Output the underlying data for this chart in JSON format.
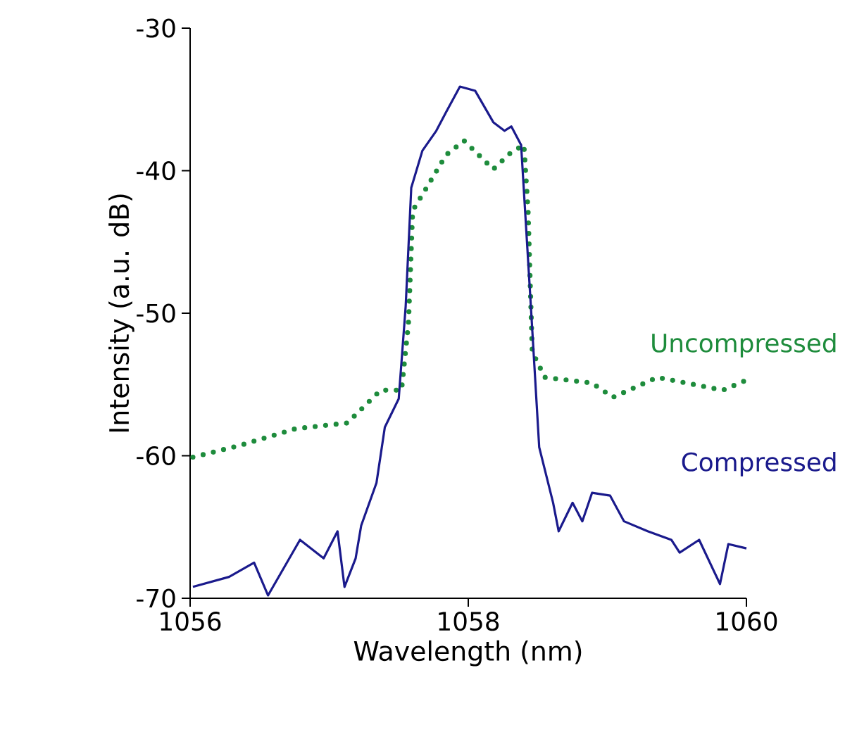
{
  "chart_data": {
    "type": "line",
    "xlabel": "Wavelength (nm)",
    "ylabel": "Intensity (a.u. dB)",
    "xlim": [
      1056,
      1060
    ],
    "ylim": [
      -70,
      -30
    ],
    "xticks": [
      1056,
      1058,
      1060
    ],
    "yticks": [
      -70,
      -60,
      -50,
      -40,
      -30
    ],
    "grid": false,
    "series": [
      {
        "name": "Uncompressed",
        "color": "#1e8c3c",
        "line_style": "dotted",
        "x": [
          1056.02,
          1056.35,
          1056.76,
          1057.13,
          1057.37,
          1057.52,
          1057.57,
          1057.6,
          1057.7,
          1057.84,
          1057.97,
          1058.18,
          1058.31,
          1058.4,
          1058.43,
          1058.46,
          1058.55,
          1058.89,
          1059.04,
          1059.36,
          1059.83,
          1060.0
        ],
        "values": [
          -60.1,
          -59.3,
          -58.1,
          -57.7,
          -55.4,
          -55.4,
          -50.7,
          -42.8,
          -41.2,
          -38.9,
          -37.9,
          -39.9,
          -38.7,
          -38.2,
          -42.8,
          -52.7,
          -54.5,
          -54.9,
          -55.9,
          -54.5,
          -55.4,
          -54.7
        ]
      },
      {
        "name": "Compressed",
        "color": "#1a1a8c",
        "line_style": "solid",
        "x": [
          1056.02,
          1056.28,
          1056.46,
          1056.56,
          1056.79,
          1056.96,
          1057.06,
          1057.11,
          1057.19,
          1057.23,
          1057.34,
          1057.4,
          1057.5,
          1057.55,
          1057.59,
          1057.67,
          1057.77,
          1057.84,
          1057.94,
          1058.05,
          1058.18,
          1058.26,
          1058.31,
          1058.38,
          1058.45,
          1058.51,
          1058.61,
          1058.65,
          1058.75,
          1058.82,
          1058.89,
          1059.02,
          1059.12,
          1059.29,
          1059.46,
          1059.52,
          1059.66,
          1059.81,
          1059.87,
          1060.0
        ],
        "values": [
          -69.2,
          -68.5,
          -67.5,
          -69.8,
          -65.9,
          -67.2,
          -65.3,
          -69.2,
          -67.2,
          -64.9,
          -61.9,
          -58.0,
          -56.0,
          -49.5,
          -41.2,
          -38.6,
          -37.2,
          -35.9,
          -34.1,
          -34.4,
          -36.6,
          -37.2,
          -36.9,
          -38.2,
          -49.5,
          -59.4,
          -63.3,
          -65.3,
          -63.3,
          -64.6,
          -62.6,
          -62.8,
          -64.6,
          -65.3,
          -65.9,
          -66.8,
          -65.9,
          -69.0,
          -66.2,
          -66.5
        ]
      }
    ]
  }
}
